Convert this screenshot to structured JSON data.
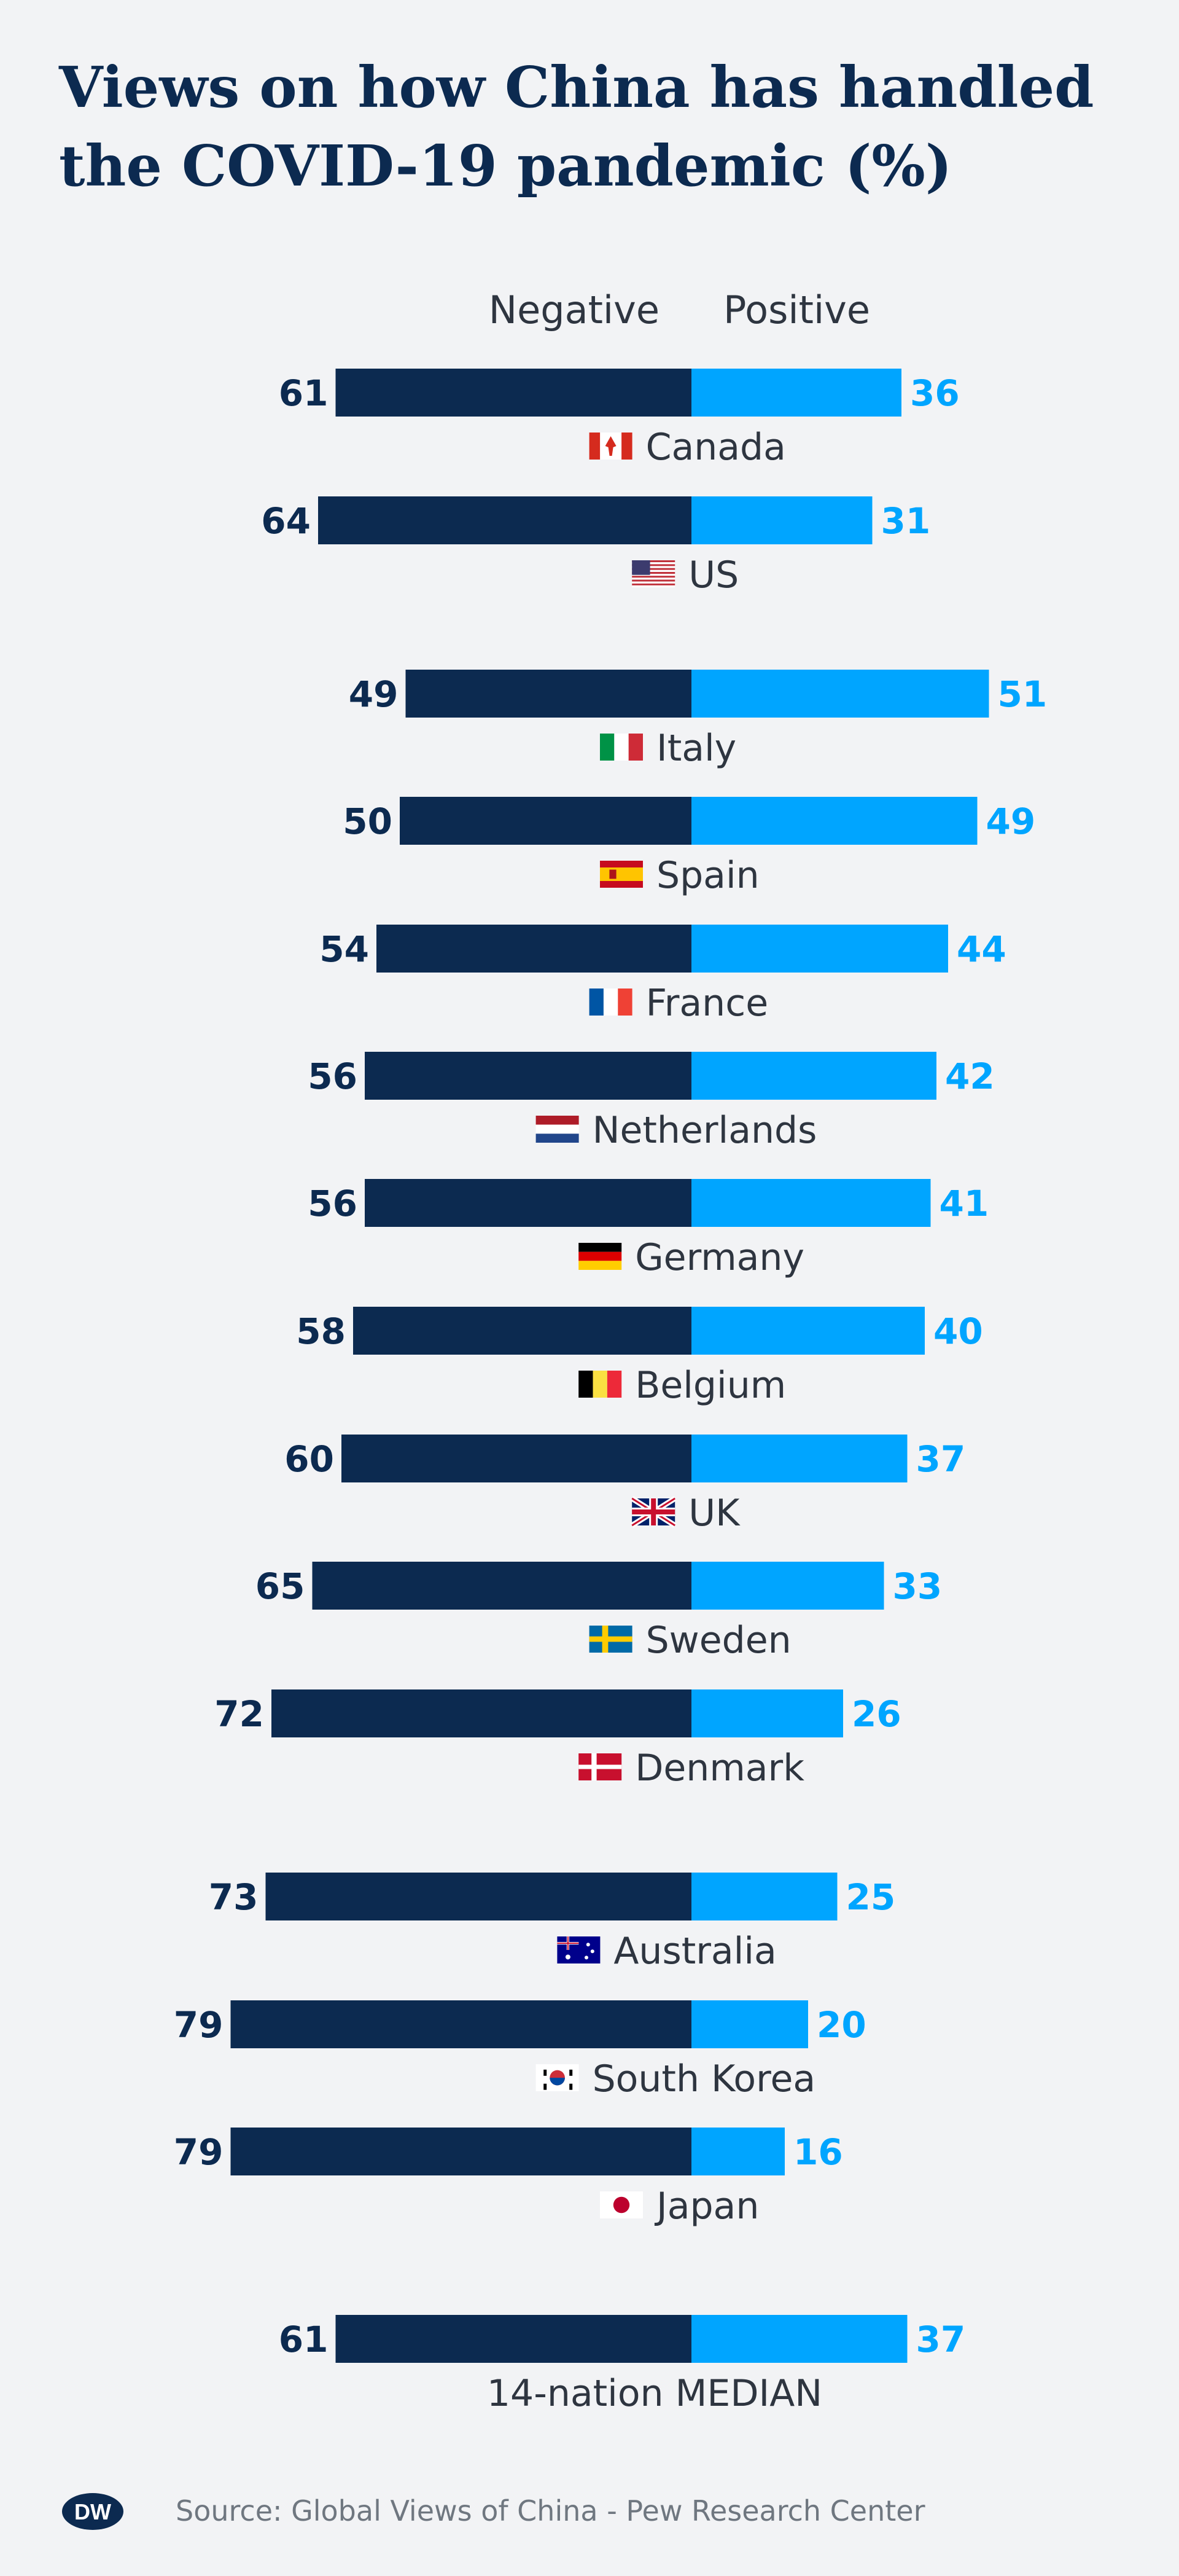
{
  "title_lines": [
    "Views on how China has handled",
    "the COVID-19 pandemic (%)"
  ],
  "colors": {
    "negative": "#0c2a50",
    "positive": "#00a5ff",
    "background": "#f2f3f5",
    "text": "#2e3540"
  },
  "chart_data": {
    "type": "bar",
    "orientation": "diverging-horizontal",
    "title": "Views on how China has handled the COVID-19 pandemic (%)",
    "unit": "%",
    "legend": [
      "Negative",
      "Positive"
    ],
    "categories": [
      "Canada",
      "US",
      "Italy",
      "Spain",
      "France",
      "Netherlands",
      "Germany",
      "Belgium",
      "UK",
      "Sweden",
      "Denmark",
      "Australia",
      "South Korea",
      "Japan",
      "14-nation MEDIAN"
    ],
    "flag_icons": [
      "flag-canada-icon",
      "flag-us-icon",
      "flag-italy-icon",
      "flag-spain-icon",
      "flag-france-icon",
      "flag-netherlands-icon",
      "flag-germany-icon",
      "flag-belgium-icon",
      "flag-uk-icon",
      "flag-sweden-icon",
      "flag-denmark-icon",
      "flag-australia-icon",
      "flag-south-korea-icon",
      "flag-japan-icon",
      ""
    ],
    "series": [
      {
        "name": "Negative",
        "values": [
          61,
          64,
          49,
          50,
          54,
          56,
          56,
          58,
          60,
          65,
          72,
          73,
          79,
          79,
          61
        ]
      },
      {
        "name": "Positive",
        "values": [
          36,
          31,
          51,
          49,
          44,
          42,
          41,
          40,
          37,
          33,
          26,
          25,
          20,
          16,
          37
        ]
      }
    ]
  },
  "footer": {
    "logo": "DW",
    "source": "Source: Global Views of China - Pew Research Center"
  }
}
